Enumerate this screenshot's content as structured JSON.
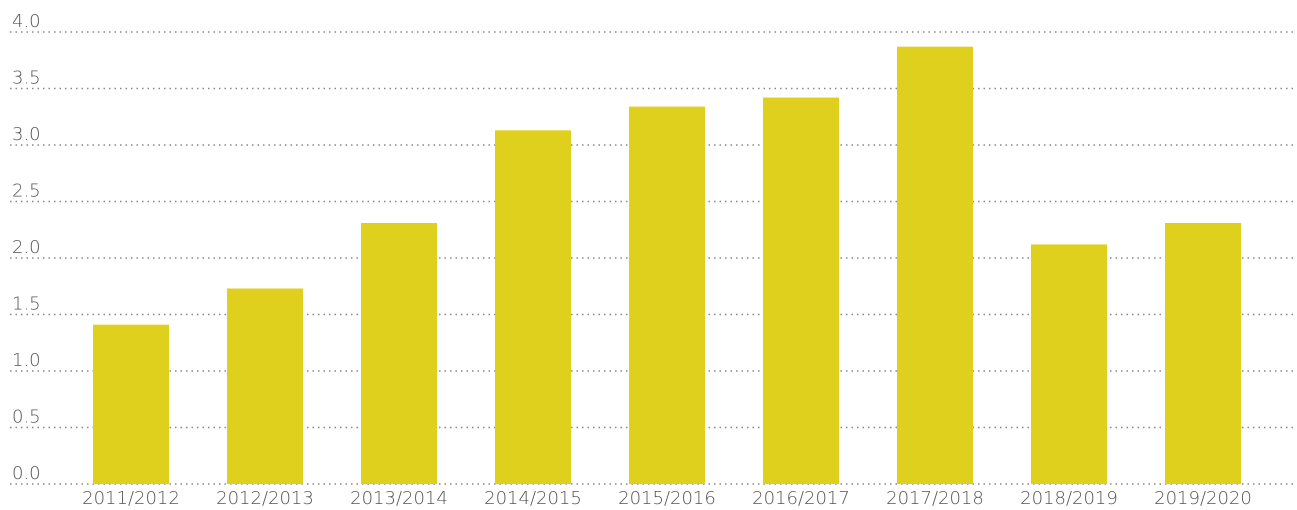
{
  "chart_data": {
    "type": "bar",
    "categories": [
      "2011/2012",
      "2012/2013",
      "2013/2014",
      "2014/2015",
      "2015/2016",
      "2016/2017",
      "2017/2018",
      "2018/2019",
      "2019/2020"
    ],
    "values": [
      1.41,
      1.73,
      2.31,
      3.13,
      3.34,
      3.42,
      3.87,
      2.12,
      2.31
    ],
    "color": "#e0d01e",
    "ylim": [
      0,
      4
    ],
    "yticks": [
      {
        "value": 0,
        "label": "0.0"
      },
      0.5,
      {
        "value": 1,
        "label": "1.0"
      },
      1.5,
      {
        "value": 2,
        "label": "2.0"
      },
      2.5,
      {
        "value": 3,
        "label": "3.0"
      },
      3.5,
      {
        "value": 4,
        "label": "4.0"
      }
    ],
    "grid": true
  }
}
